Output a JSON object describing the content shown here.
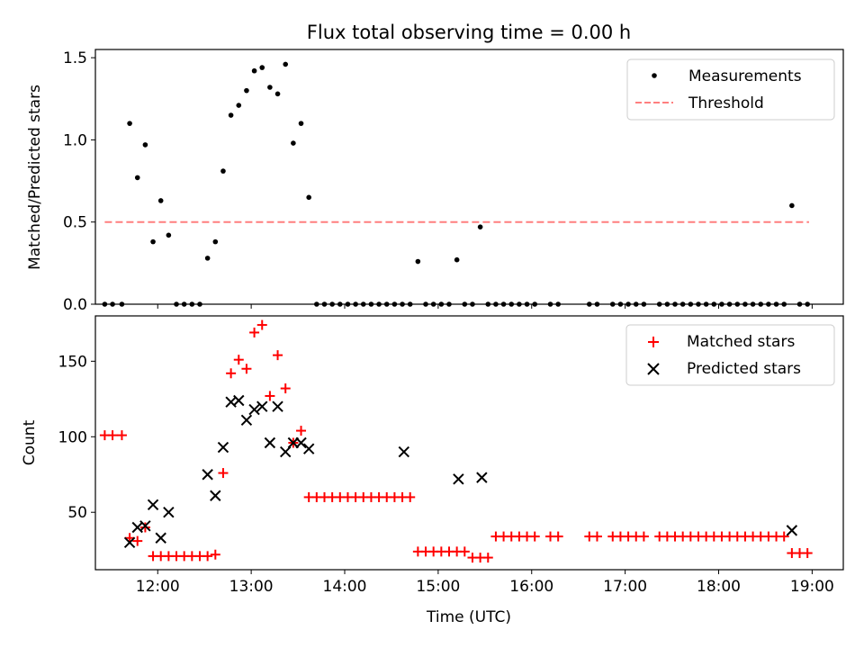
{
  "chart_data": [
    {
      "type": "scatter",
      "title": "Flux total observing time = 0.00 h",
      "xlabel": "",
      "ylabel": "Matched/Predicted stars",
      "xlim": [
        "11:20",
        "19:20"
      ],
      "ylim": [
        0,
        1.55
      ],
      "x_ticks": [
        "12:00",
        "13:00",
        "14:00",
        "15:00",
        "16:00",
        "17:00",
        "18:00",
        "19:00"
      ],
      "y_ticks": [
        "0.0",
        "0.5",
        "1.0",
        "1.5"
      ],
      "legend_position": "top-right",
      "grid": false,
      "series": [
        {
          "name": "Measurements",
          "marker": "dot",
          "color": "#000000",
          "x": [
            "11:26",
            "11:31",
            "11:37",
            "11:42",
            "11:47",
            "11:52",
            "11:57",
            "12:02",
            "12:07",
            "12:12",
            "12:17",
            "12:22",
            "12:27",
            "12:32",
            "12:37",
            "12:42",
            "12:47",
            "12:52",
            "12:57",
            "13:02",
            "13:07",
            "13:12",
            "13:17",
            "13:22",
            "13:27",
            "13:32",
            "13:37",
            "13:42",
            "13:47",
            "13:52",
            "13:57",
            "14:02",
            "14:07",
            "14:12",
            "14:17",
            "14:22",
            "14:27",
            "14:32",
            "14:37",
            "14:42",
            "14:47",
            "14:52",
            "14:57",
            "15:02",
            "15:07",
            "15:12",
            "15:17",
            "15:22",
            "15:27",
            "15:32",
            "15:37",
            "15:42",
            "15:47",
            "15:52",
            "15:57",
            "16:02",
            "16:12",
            "16:17",
            "16:37",
            "16:42",
            "16:52",
            "16:57",
            "17:02",
            "17:07",
            "17:12",
            "17:22",
            "17:27",
            "17:32",
            "17:37",
            "17:42",
            "17:47",
            "17:52",
            "17:57",
            "18:02",
            "18:07",
            "18:12",
            "18:17",
            "18:22",
            "18:27",
            "18:32",
            "18:37",
            "18:42",
            "18:47",
            "18:52",
            "18:57"
          ],
          "y": [
            0,
            0,
            0,
            1.1,
            0.77,
            0.97,
            0.38,
            0.63,
            0.42,
            0,
            0,
            0,
            0,
            0.28,
            0.38,
            0.81,
            1.15,
            1.21,
            1.3,
            1.42,
            1.44,
            1.32,
            1.28,
            1.46,
            0.98,
            1.1,
            0.65,
            0,
            0,
            0,
            0,
            0,
            0,
            0,
            0,
            0,
            0,
            0,
            0,
            0,
            0.26,
            0,
            0,
            0,
            0,
            0.27,
            0,
            0,
            0.47,
            0,
            0,
            0,
            0,
            0,
            0,
            0,
            0,
            0,
            0,
            0,
            0,
            0,
            0,
            0,
            0,
            0,
            0,
            0,
            0,
            0,
            0,
            0,
            0,
            0,
            0,
            0,
            0,
            0,
            0,
            0,
            0,
            0,
            0.6,
            0,
            0
          ]
        },
        {
          "name": "Threshold",
          "style": "dashed",
          "color": "#ff7f7f",
          "x": [
            "11:26",
            "18:58"
          ],
          "y": [
            0.5,
            0.5
          ]
        }
      ]
    },
    {
      "type": "scatter",
      "title": "",
      "xlabel": "Time (UTC)",
      "ylabel": "Count",
      "xlim": [
        "11:20",
        "19:20"
      ],
      "ylim": [
        12,
        180
      ],
      "x_ticks": [
        "12:00",
        "13:00",
        "14:00",
        "15:00",
        "16:00",
        "17:00",
        "18:00",
        "19:00"
      ],
      "y_ticks": [
        "50",
        "100",
        "150"
      ],
      "legend_position": "top-right",
      "grid": false,
      "series": [
        {
          "name": "Matched stars",
          "marker": "plus",
          "color": "#ff0000",
          "x": [
            "11:26",
            "11:31",
            "11:37",
            "11:42",
            "11:47",
            "11:52",
            "11:57",
            "12:02",
            "12:07",
            "12:12",
            "12:17",
            "12:22",
            "12:27",
            "12:32",
            "12:37",
            "12:42",
            "12:47",
            "12:52",
            "12:57",
            "13:02",
            "13:07",
            "13:12",
            "13:17",
            "13:22",
            "13:27",
            "13:32",
            "13:37",
            "13:42",
            "13:47",
            "13:52",
            "13:57",
            "14:02",
            "14:07",
            "14:12",
            "14:17",
            "14:22",
            "14:27",
            "14:32",
            "14:37",
            "14:42",
            "14:47",
            "14:52",
            "14:57",
            "15:02",
            "15:07",
            "15:12",
            "15:17",
            "15:22",
            "15:27",
            "15:32",
            "15:37",
            "15:42",
            "15:47",
            "15:52",
            "15:57",
            "16:02",
            "16:12",
            "16:17",
            "16:37",
            "16:42",
            "16:52",
            "16:57",
            "17:02",
            "17:07",
            "17:12",
            "17:22",
            "17:27",
            "17:32",
            "17:37",
            "17:42",
            "17:47",
            "17:52",
            "17:57",
            "18:02",
            "18:07",
            "18:12",
            "18:17",
            "18:22",
            "18:27",
            "18:32",
            "18:37",
            "18:42",
            "18:47",
            "18:52",
            "18:57"
          ],
          "y": [
            101,
            101,
            101,
            33,
            31,
            40,
            21,
            21,
            21,
            21,
            21,
            21,
            21,
            21,
            22,
            76,
            142,
            151,
            145,
            169,
            174,
            127,
            154,
            132,
            96,
            104,
            60,
            60,
            60,
            60,
            60,
            60,
            60,
            60,
            60,
            60,
            60,
            60,
            60,
            60,
            24,
            24,
            24,
            24,
            24,
            24,
            24,
            20,
            20,
            20,
            34,
            34,
            34,
            34,
            34,
            34,
            34,
            34,
            34,
            34,
            34,
            34,
            34,
            34,
            34,
            34,
            34,
            34,
            34,
            34,
            34,
            34,
            34,
            34,
            34,
            34,
            34,
            34,
            34,
            34,
            34,
            34,
            23,
            23,
            23
          ]
        },
        {
          "name": "Predicted stars",
          "marker": "x",
          "color": "#000000",
          "x": [
            "11:42",
            "11:47",
            "11:52",
            "11:57",
            "12:02",
            "12:07",
            "12:32",
            "12:37",
            "12:42",
            "12:47",
            "12:52",
            "12:57",
            "13:02",
            "13:07",
            "13:12",
            "13:17",
            "13:22",
            "13:27",
            "13:32",
            "13:37",
            "14:38",
            "15:13",
            "15:28",
            "18:47"
          ],
          "y": [
            30,
            40,
            41,
            55,
            33,
            50,
            75,
            61,
            93,
            123,
            124,
            111,
            118,
            120,
            96,
            120,
            90,
            96,
            96,
            92,
            90,
            72,
            73,
            38
          ]
        }
      ]
    }
  ]
}
